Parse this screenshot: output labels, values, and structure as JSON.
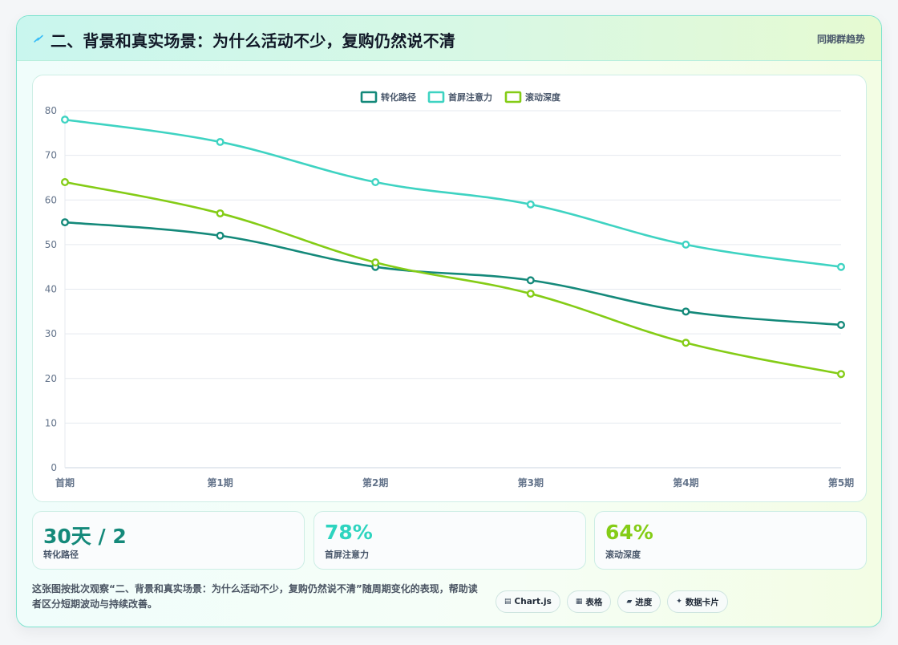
{
  "header": {
    "title": "二、背景和真实场景：为什么活动不少，复购仍然说不清",
    "tag": "同期群趋势",
    "accent": "#38bdf8"
  },
  "chart_data": {
    "type": "line",
    "x": [
      "首期",
      "第1期",
      "第2期",
      "第3期",
      "第4期",
      "第5期"
    ],
    "ylim": [
      0,
      80
    ],
    "yticks": [
      0,
      10,
      20,
      30,
      40,
      50,
      60,
      70,
      80
    ],
    "grid": true,
    "legend_position": "top-center",
    "series": [
      {
        "name": "转化路径",
        "color": "#14897a",
        "values": [
          55,
          52,
          45,
          42,
          35,
          32
        ]
      },
      {
        "name": "首屏注意力",
        "color": "#3ed3c2",
        "values": [
          78,
          73,
          64,
          59,
          50,
          45
        ]
      },
      {
        "name": "滚动深度",
        "color": "#84cc16",
        "values": [
          64,
          57,
          46,
          39,
          28,
          21
        ]
      }
    ]
  },
  "stats": [
    {
      "value": "30天 / 2",
      "label": "转化路径",
      "color": "#14897a"
    },
    {
      "value": "78%",
      "label": "首屏注意力",
      "color": "#2dd4bf"
    },
    {
      "value": "64%",
      "label": "滚动深度",
      "color": "#84cc16"
    }
  ],
  "footer": {
    "description": "这张图按批次观察“二、背景和真实场景：为什么活动不少，复购仍然说不清”随周期变化的表现，帮助读者区分短期波动与持续改善。",
    "badges": [
      {
        "icon": "▤",
        "icon_name": "chart-icon",
        "label": "Chart.js"
      },
      {
        "icon": "▦",
        "icon_name": "table-icon",
        "label": "表格"
      },
      {
        "icon": "▰",
        "icon_name": "progress-icon",
        "label": "进度"
      },
      {
        "icon": "✦",
        "icon_name": "sparkle-icon",
        "label": "数据卡片"
      }
    ]
  }
}
